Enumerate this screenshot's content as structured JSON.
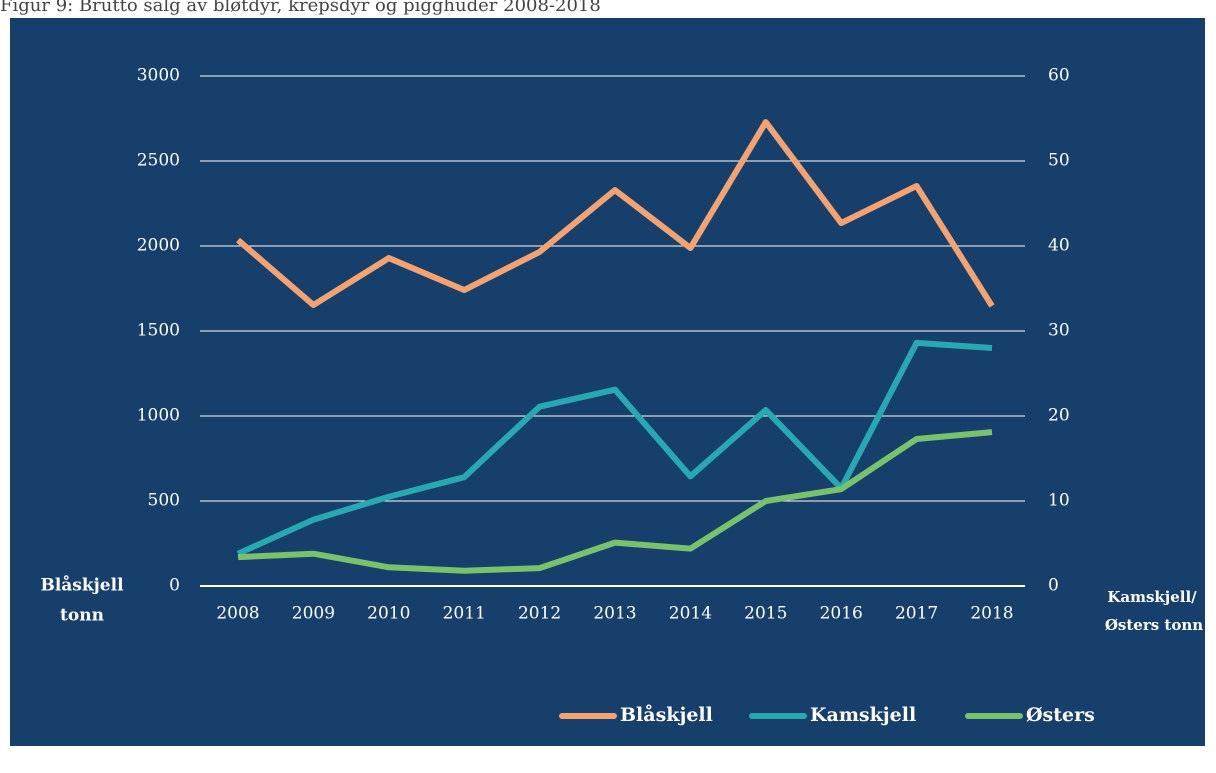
{
  "chart_data": {
    "type": "line",
    "title": "Figur 9: Brutto salg av bløtdyr, krepsdyr og pigghuder 2008-2018",
    "ylabel": [
      "Blåskjell",
      "tonn"
    ],
    "y2label": [
      "Kamskjell/",
      "Østers tonn"
    ],
    "categories": [
      "2008",
      "2009",
      "2010",
      "2011",
      "2012",
      "2013",
      "2014",
      "2015",
      "2016",
      "2017",
      "2018"
    ],
    "series": [
      {
        "name": "Blåskjell",
        "color": "#f4a26f",
        "values": [
          2035,
          1653,
          1929,
          1741,
          1965,
          2329,
          1988,
          2729,
          2135,
          2353,
          1647
        ]
      },
      {
        "name": "Kamskjell",
        "color": "#27a9b4",
        "axis": "y2",
        "values": [
          3.8,
          7.8,
          10.5,
          12.8,
          21.1,
          23.1,
          12.9,
          20.7,
          11.5,
          28.6,
          28.0
        ]
      },
      {
        "name": "Østers",
        "color": "#79c16b",
        "axis": "y2",
        "values": [
          3.4,
          3.8,
          2.2,
          1.8,
          2.1,
          5.1,
          4.4,
          10.0,
          11.4,
          17.3,
          18.1
        ]
      }
    ],
    "ylim": [
      0,
      3000
    ],
    "yticks": [
      0,
      500,
      1000,
      1500,
      2000,
      2500,
      3000
    ],
    "y2lim": [
      0,
      60
    ],
    "y2ticks": [
      0,
      10,
      20,
      30,
      40,
      50,
      60
    ],
    "grid": true,
    "legend": "bottom"
  }
}
